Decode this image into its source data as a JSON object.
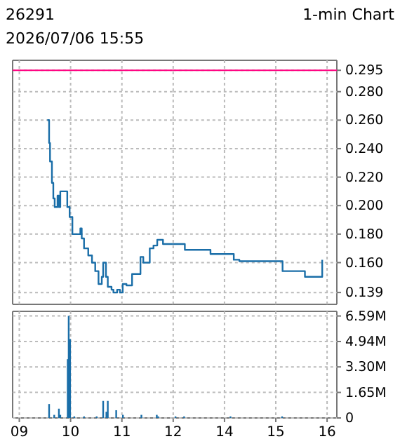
{
  "chart_data": [
    {
      "type": "step",
      "title": "26291",
      "subtitle": "2026/07/06 15:55",
      "annotations": [
        "1-min Chart"
      ],
      "x": [
        9.545,
        9.581,
        9.599,
        9.636,
        9.663,
        9.69,
        9.745,
        9.772,
        9.799,
        9.899,
        9.935,
        9.981,
        10.035,
        10.163,
        10.19,
        10.217,
        10.262,
        10.344,
        10.417,
        10.48,
        10.544,
        10.599,
        10.608,
        10.635,
        10.672,
        10.689,
        10.725,
        10.798,
        10.835,
        10.907,
        10.962,
        11.016,
        11.089,
        11.171,
        11.198,
        11.325,
        11.362,
        11.417,
        11.507,
        11.543,
        11.616,
        11.689,
        11.801,
        12.0
      ],
      "series": [
        {
          "color": "#1a6ea8",
          "values": [
            0.26,
            0.244,
            0.231,
            0.216,
            0.205,
            0.199,
            0.207,
            0.199,
            0.21,
            0.21,
            0.199,
            0.192,
            0.18,
            0.18,
            0.184,
            0.177,
            0.17,
            0.165,
            0.16,
            0.154,
            0.145,
            0.145,
            0.15,
            0.16,
            0.16,
            0.15,
            0.143,
            0.141,
            0.139,
            0.141,
            0.139,
            0.145,
            0.144,
            0.144,
            0.152,
            0.152,
            0.164,
            0.16,
            0.16,
            0.17,
            0.172,
            0.176,
            0.173,
            0.173
          ]
        }
      ],
      "xlim": [
        8.87,
        12
      ],
      "ylim": [
        0.1307,
        0.302
      ],
      "xticks": [
        9,
        10,
        11,
        12
      ],
      "yticks": [
        0.139,
        0.16,
        0.18,
        0.2,
        0.22,
        0.24,
        0.26,
        0.28,
        0.295
      ],
      "ref_lines": [
        {
          "axis": "y",
          "value": 0.295,
          "color": "#ff0080"
        }
      ],
      "grid": true,
      "tick_labels": false
    },
    {
      "type": "step",
      "x": [
        13.0,
        13.227,
        13.727,
        14.108,
        14.181,
        14.29,
        15.087,
        15.132,
        15.541,
        15.568,
        15.886,
        15.905
      ],
      "series": [
        {
          "color": "#1a6ea8",
          "values": [
            0.173,
            0.169,
            0.166,
            0.166,
            0.162,
            0.161,
            0.161,
            0.154,
            0.154,
            0.15,
            0.15,
            0.162
          ]
        }
      ],
      "xlim": [
        13,
        16.19
      ],
      "ylim": [
        0.1307,
        0.302
      ],
      "xticks": [
        14,
        15,
        16
      ],
      "yticks": [
        {
          "value": 0.139,
          "label": "0.139"
        },
        {
          "value": 0.16,
          "label": "0.160"
        },
        {
          "value": 0.18,
          "label": "0.180"
        },
        {
          "value": 0.2,
          "label": "0.200"
        },
        {
          "value": 0.22,
          "label": "0.220"
        },
        {
          "value": 0.24,
          "label": "0.240"
        },
        {
          "value": 0.26,
          "label": "0.260"
        },
        {
          "value": 0.28,
          "label": "0.280"
        },
        {
          "value": 0.295,
          "label": "0.295"
        }
      ],
      "ref_lines": [
        {
          "axis": "y",
          "value": 0.295,
          "color": "#ff0080"
        }
      ],
      "grid": true,
      "tick_labels": "y"
    },
    {
      "type": "bar",
      "x": [
        9.581,
        9.681,
        9.772,
        9.799,
        9.944,
        9.963,
        9.99,
        10.072,
        10.262,
        10.508,
        10.635,
        10.698,
        10.725,
        10.889,
        11.02,
        11.38,
        11.68,
        11.708
      ],
      "series": [
        {
          "color": "#1a6ea8",
          "values": [
            900000,
            200000,
            600000,
            200000,
            3800000,
            6600000,
            5100000,
            100000,
            100000,
            100000,
            1100000,
            400000,
            1100000,
            500000,
            200000,
            200000,
            200000,
            100000
          ]
        }
      ],
      "xlim": [
        8.87,
        12
      ],
      "ylim": [
        0,
        6890000
      ],
      "xticks": [
        {
          "value": 9,
          "label": "09"
        },
        10,
        11,
        12
      ],
      "yticks": [
        0,
        1650000,
        3300000,
        4940000,
        6590000
      ],
      "grid": true,
      "tick_labels": "x"
    },
    {
      "type": "bar",
      "x": [
        13.045,
        13.213,
        14.117,
        15.123
      ],
      "series": [
        {
          "color": "#1a6ea8",
          "values": [
            100000,
            100000,
            100000,
            100000
          ]
        }
      ],
      "xlim": [
        13,
        16.19
      ],
      "ylim": [
        0,
        6890000
      ],
      "xticks": [
        14,
        15,
        16
      ],
      "yticks": [
        0,
        {
          "value": 1650000,
          "label": "1.65M"
        },
        {
          "value": 3300000,
          "label": "3.30M"
        },
        {
          "value": 4940000,
          "label": "4.94M"
        },
        {
          "value": 6590000,
          "label": "6.59M"
        }
      ],
      "grid": true
    }
  ]
}
